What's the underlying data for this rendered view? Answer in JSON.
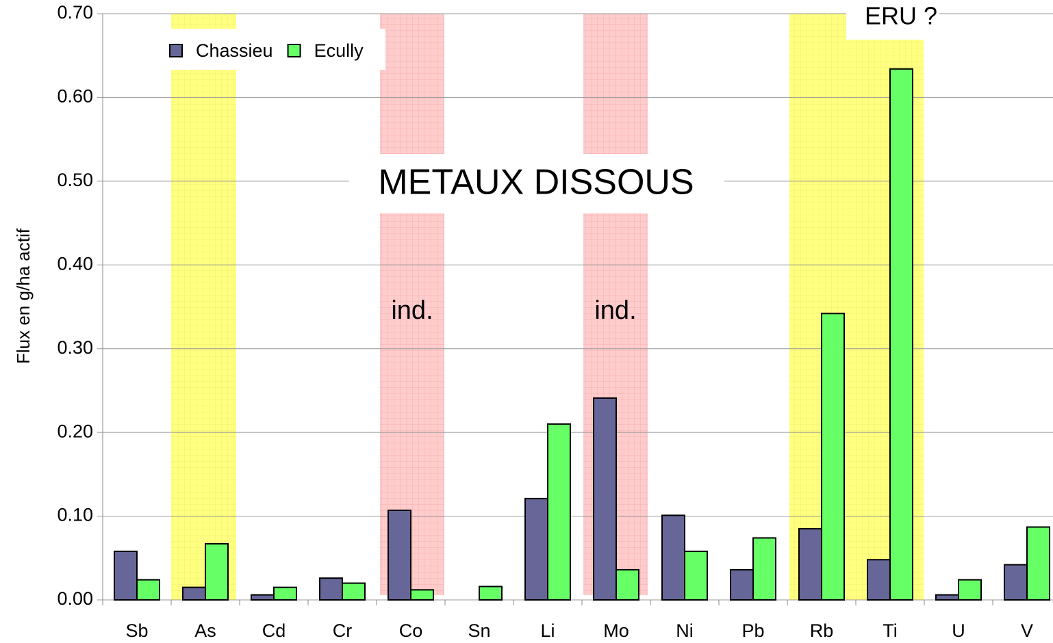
{
  "chart_data": {
    "type": "bar",
    "ylabel": "Flux en g/ha actif",
    "categories": [
      "Sb",
      "As",
      "Cd",
      "Cr",
      "Co",
      "Sn",
      "Li",
      "Mo",
      "Ni",
      "Pb",
      "Rb",
      "Ti",
      "U",
      "V"
    ],
    "series": [
      {
        "name": "Chassieu",
        "color": "#666699",
        "values": [
          0.058,
          0.015,
          0.006,
          0.026,
          0.107,
          null,
          0.121,
          0.241,
          0.101,
          0.036,
          0.085,
          0.048,
          0.006,
          0.042
        ]
      },
      {
        "name": "Ecully",
        "color": "#66ff66",
        "values": [
          0.024,
          0.067,
          0.015,
          0.02,
          0.012,
          0.016,
          0.21,
          0.036,
          0.058,
          0.074,
          0.342,
          0.634,
          0.024,
          0.087
        ]
      }
    ],
    "ylim": [
      0,
      0.7
    ],
    "yticks": [
      {
        "value": 0,
        "label": "0.00"
      },
      {
        "value": 0.1,
        "label": "0.10"
      },
      {
        "value": 0.2,
        "label": "0.20"
      },
      {
        "value": 0.3,
        "label": "0.30"
      },
      {
        "value": 0.4,
        "label": "0.40"
      },
      {
        "value": 0.5,
        "label": "0.50"
      },
      {
        "value": 0.6,
        "label": "0.60"
      },
      {
        "value": 0.7,
        "label": "0.70"
      }
    ],
    "grid": true,
    "legend": "top-left",
    "annotations": [
      "METAUX DISSOUS",
      "ERU ?",
      "ind.",
      "ind."
    ]
  }
}
